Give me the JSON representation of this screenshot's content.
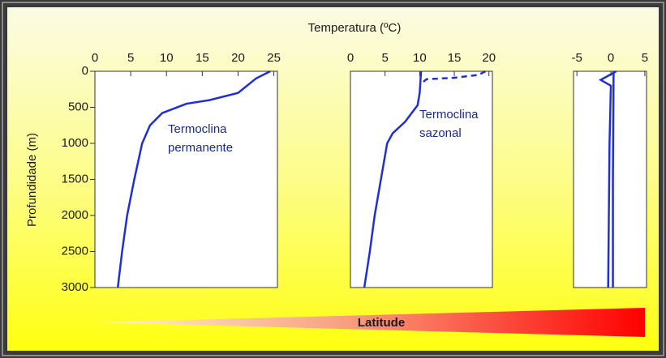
{
  "chart_data": [
    {
      "type": "line",
      "title": "Temperatura (ºC)",
      "y_label": "Profundidade (m)",
      "xlim": [
        0,
        25.5
      ],
      "xticks": [
        0,
        5,
        10,
        15,
        20,
        25
      ],
      "ylim": [
        3000,
        0
      ],
      "yticks": [
        0,
        500,
        1000,
        1500,
        2000,
        2500,
        3000
      ],
      "annotations": [
        "Termoclina",
        "permanente"
      ],
      "series": [
        {
          "color": "#1f2fd6",
          "dashed": false,
          "x": [
            24.5,
            22.5,
            20,
            16,
            12.8,
            9.4,
            7.7,
            6.6,
            5.5,
            4.5,
            3.8,
            3.2
          ],
          "values": [
            0,
            100,
            300,
            400,
            450,
            580,
            750,
            1000,
            1500,
            2000,
            2500,
            3000
          ]
        }
      ]
    },
    {
      "type": "line",
      "xlim": [
        0,
        20.5
      ],
      "xticks": [
        0,
        5,
        10,
        15,
        20
      ],
      "ylim": [
        3000,
        0
      ],
      "annotations": [
        "Termoclina",
        "sazonal"
      ],
      "series": [
        {
          "color": "#1f2fd6",
          "dashed": false,
          "x": [
            10.2,
            10,
            9.7,
            7.9,
            6.1,
            5.3,
            4.4,
            3.5,
            2.8,
            2.0
          ],
          "values": [
            0,
            300,
            470,
            700,
            860,
            1000,
            1500,
            2000,
            2500,
            3000
          ]
        },
        {
          "color": "#1f2fd6",
          "dashed": true,
          "x": [
            19.5,
            18.5,
            15,
            11,
            10.2
          ],
          "values": [
            0,
            50,
            90,
            110,
            170
          ]
        }
      ]
    },
    {
      "type": "line",
      "xlim": [
        -5.5,
        5.25
      ],
      "xticks": [
        -5,
        0,
        5
      ],
      "ylim": [
        3000,
        0
      ],
      "series": [
        {
          "color": "#1f2fd6",
          "dashed": false,
          "x": [
            0.8,
            -1.5,
            0,
            -0.2,
            -0.4
          ],
          "values": [
            0,
            120,
            200,
            1000,
            3000
          ]
        },
        {
          "color": "#1f2fd6",
          "dashed": false,
          "x": [
            0.4,
            0.3,
            0.3
          ],
          "values": [
            0,
            1500,
            3000
          ]
        }
      ]
    }
  ],
  "latitude_bar": {
    "label": "Latitude"
  }
}
